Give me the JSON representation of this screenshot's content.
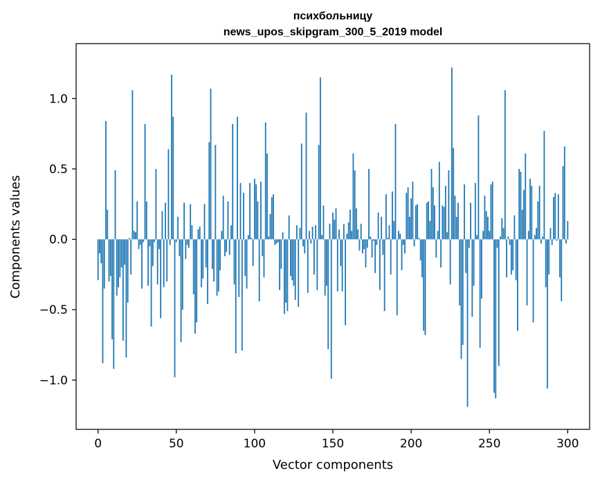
{
  "chart_data": {
    "type": "bar",
    "title": "психбольницу",
    "subtitle": "news_upos_skipgram_300_5_2019 model",
    "xlabel": "Vector components",
    "ylabel": "Components values",
    "xlim": [
      -14,
      314
    ],
    "ylim": [
      -1.35,
      1.39
    ],
    "xticks": [
      0,
      50,
      100,
      150,
      200,
      250,
      300
    ],
    "xtick_labels": [
      "0",
      "50",
      "100",
      "150",
      "200",
      "250",
      "300"
    ],
    "yticks": [
      -1.0,
      -0.5,
      0.0,
      0.5,
      1.0
    ],
    "ytick_labels": [
      "−1.0",
      "−0.5",
      "0.0",
      "0.5",
      "1.0"
    ],
    "grid": false,
    "bar_color": "#1f77b4",
    "values": [
      -0.29,
      -0.1,
      -0.17,
      -0.88,
      -0.35,
      0.84,
      0.21,
      -0.3,
      -0.26,
      -0.71,
      -0.92,
      0.49,
      -0.4,
      -0.34,
      -0.27,
      -0.2,
      -0.72,
      -0.18,
      -0.84,
      -0.45,
      0.01,
      -0.25,
      1.06,
      0.06,
      0.05,
      0.27,
      -0.07,
      -0.04,
      -0.35,
      -0.02,
      0.82,
      0.27,
      -0.33,
      -0.05,
      -0.62,
      -0.19,
      -0.02,
      0.5,
      -0.32,
      -0.07,
      -0.56,
      0.2,
      -0.34,
      0.26,
      -0.3,
      0.64,
      -0.04,
      1.17,
      0.87,
      -0.98,
      -0.02,
      0.16,
      -0.12,
      -0.73,
      -0.5,
      0.26,
      -0.14,
      -0.04,
      -0.06,
      0.25,
      0.1,
      -0.39,
      -0.67,
      -0.59,
      0.07,
      0.09,
      -0.34,
      -0.28,
      0.25,
      -0.2,
      -0.46,
      0.69,
      1.07,
      -0.21,
      -0.3,
      0.67,
      -0.4,
      -0.37,
      -0.22,
      0.06,
      0.31,
      -0.12,
      -0.09,
      0.27,
      -0.11,
      0.1,
      0.82,
      -0.32,
      -0.81,
      0.87,
      -0.41,
      0.4,
      -0.79,
      0.33,
      -0.26,
      -0.35,
      0.03,
      0.4,
      0.01,
      -0.19,
      0.43,
      0.39,
      0.27,
      -0.44,
      0.41,
      -0.12,
      -0.27,
      0.83,
      0.61,
      0.02,
      0.18,
      0.3,
      0.32,
      -0.04,
      -0.03,
      -0.02,
      -0.36,
      -0.21,
      0.05,
      -0.53,
      -0.45,
      -0.51,
      0.17,
      -0.26,
      -0.29,
      -0.33,
      -0.43,
      0.1,
      -0.48,
      0.08,
      0.68,
      -0.05,
      -0.1,
      0.9,
      -0.38,
      0.06,
      -0.03,
      0.09,
      -0.25,
      0.1,
      -0.36,
      0.67,
      1.15,
      0.03,
      0.24,
      -0.4,
      -0.33,
      -0.78,
      0.11,
      -0.99,
      0.19,
      0.14,
      0.22,
      -0.37,
      0.07,
      -0.19,
      -0.37,
      0.11,
      -0.61,
      0.04,
      0.12,
      0.21,
      0.06,
      0.61,
      0.49,
      0.22,
      0.07,
      -0.08,
      0.11,
      -0.1,
      -0.07,
      -0.2,
      -0.06,
      0.5,
      0.02,
      -0.13,
      -0.01,
      -0.24,
      -0.04,
      0.19,
      -0.36,
      0.16,
      -0.11,
      -0.51,
      0.32,
      0.01,
      0.1,
      -0.25,
      0.34,
      0.13,
      0.82,
      -0.54,
      0.06,
      0.04,
      -0.22,
      -0.04,
      -0.1,
      0.33,
      0.37,
      0.16,
      0.29,
      0.41,
      -0.05,
      0.24,
      0.25,
      0.01,
      -0.15,
      -0.27,
      -0.65,
      -0.68,
      0.26,
      0.27,
      0.13,
      0.5,
      0.37,
      0.24,
      -0.13,
      0.06,
      0.55,
      -0.2,
      0.24,
      0.23,
      0.38,
      0.05,
      0.49,
      -0.32,
      1.22,
      0.65,
      0.31,
      0.16,
      0.26,
      -0.47,
      -0.85,
      -0.75,
      0.39,
      -0.24,
      -1.19,
      -0.06,
      0.26,
      -0.55,
      -0.33,
      0.4,
      0.03,
      0.88,
      -0.77,
      -0.42,
      0.06,
      0.31,
      0.2,
      0.16,
      0.06,
      0.39,
      0.41,
      -1.09,
      -1.13,
      -0.06,
      -0.9,
      0.02,
      0.15,
      0.08,
      1.06,
      -0.27,
      0.02,
      -0.04,
      -0.25,
      -0.22,
      0.17,
      -0.29,
      -0.65,
      0.5,
      0.48,
      0.21,
      0.35,
      0.61,
      -0.47,
      0.06,
      0.43,
      0.38,
      -0.59,
      0.03,
      0.08,
      0.27,
      0.38,
      -0.03,
      0.02,
      0.77,
      -0.34,
      -1.06,
      -0.25,
      0.08,
      -0.04,
      0.3,
      0.33,
      -0.01,
      0.32,
      -0.27,
      -0.44,
      0.52,
      0.66,
      -0.03,
      0.13
    ]
  }
}
